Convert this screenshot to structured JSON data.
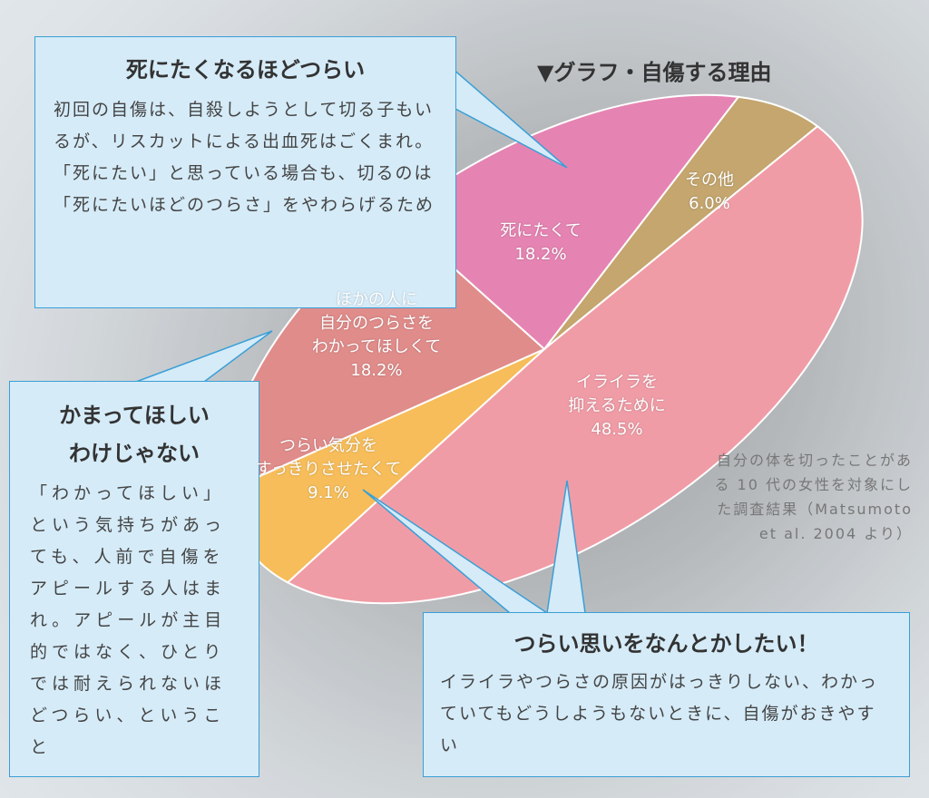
{
  "chart_data": {
    "type": "pie",
    "title": "▼グラフ・自傷する理由",
    "slices": [
      {
        "label": "死にたくて",
        "value": 18.2,
        "value_label": "18.2%",
        "color": "#e584b2"
      },
      {
        "label": "その他",
        "value": 6.0,
        "value_label": "6.0%",
        "color": "#c4a66e"
      },
      {
        "label": "イライラを\n抑えるために",
        "value": 48.5,
        "value_label": "48.5%",
        "color": "#f09ca6"
      },
      {
        "label": "つらい気分を\nすっきりさせたくて",
        "value": 9.1,
        "value_label": "9.1%",
        "color": "#f6bd5a"
      },
      {
        "label": "ほかの人に\n自分のつらさを\nわかってほしくて",
        "value": 18.2,
        "value_label": "18.2%",
        "color": "#e08c8a"
      }
    ],
    "note": "自分の体を切ったことがある 10 代の女性を対象にした調査結果（Matsumoto et al. 2004 より）"
  },
  "callouts": {
    "die": {
      "title": "死にたくなるほどつらい",
      "body": "初回の自傷は、自殺しようとして切る子もいるが、リスカットによる出血死はごくまれ。「死にたい」と思っている場合も、切るのは「死にたいほどのつらさ」をやわらげるため"
    },
    "attention": {
      "title": "かまってほしい\nわけじゃない",
      "body": "「わかってほしい」という気持ちがあっても、人前で自傷をアピールする人はまれ。アピールが主目的ではなく、ひとりでは耐えられないほどつらい、ということ"
    },
    "relief": {
      "title": "つらい思いをなんとかしたい！",
      "body": "イライラやつらさの原因がはっきりしない、わかっていてもどうしようもないときに、自傷がおきやすい"
    }
  }
}
